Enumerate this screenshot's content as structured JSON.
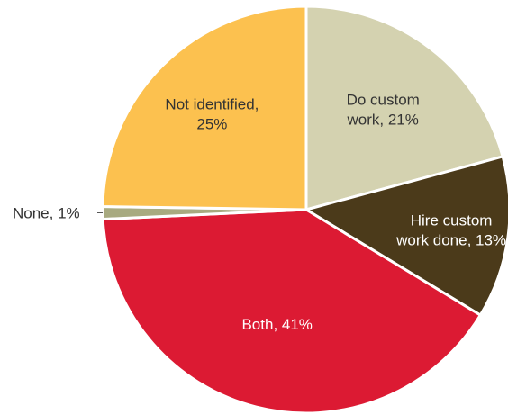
{
  "chart_data": {
    "type": "pie",
    "title": "",
    "start": "12 o'clock",
    "direction": "clockwise",
    "slices": [
      {
        "label_lines": [
          "Do custom",
          "work, 21%"
        ],
        "value": 21,
        "color": "#D4D2B0",
        "text_color": "#333333"
      },
      {
        "label_lines": [
          "Hire custom",
          "work done, 13%"
        ],
        "value": 13,
        "color": "#4B3A1A",
        "text_color": "#FFFFFF"
      },
      {
        "label_lines": [
          "Both, 41%"
        ],
        "value": 41,
        "color": "#DC1A33",
        "text_color": "#FFFFFF"
      },
      {
        "label_lines": [
          "None, 1%"
        ],
        "value": 1,
        "color": "#A8AA80",
        "text_color": "#333333",
        "label_outside": true
      },
      {
        "label_lines": [
          "Not identified,",
          "25%"
        ],
        "value": 25,
        "color": "#FCC14F",
        "text_color": "#333333"
      }
    ]
  }
}
